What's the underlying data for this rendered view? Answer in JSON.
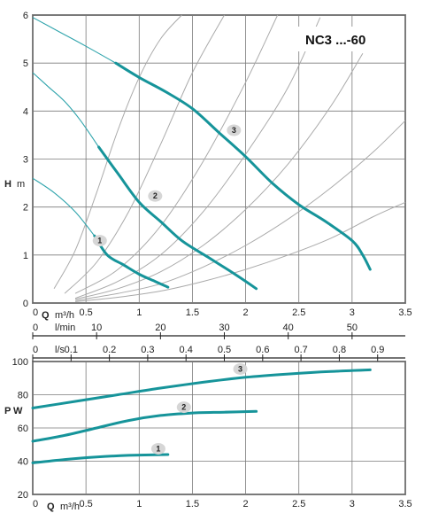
{
  "chart_data": [
    {
      "type": "line",
      "title": "NC3 ...-60",
      "ylabel": "H",
      "yunit": "m",
      "xlabel": "Q",
      "xunit": "m³/h",
      "xlim": [
        0,
        3.5
      ],
      "ylim": [
        0,
        6
      ],
      "x_ticks": [
        "0",
        "0.5",
        "1",
        "1.5",
        "2",
        "2.5",
        "3",
        "3.5"
      ],
      "y_ticks": [
        "0",
        "1",
        "2",
        "3",
        "4",
        "5",
        "6"
      ],
      "secondary_axes": [
        {
          "label": "l/min",
          "ticks": [
            "0",
            "10",
            "20",
            "30",
            "40",
            "50"
          ],
          "values": [
            0,
            10,
            20,
            30,
            40,
            50
          ],
          "per_m3h": 16.6667
        },
        {
          "label": "l/s",
          "ticks": [
            "0",
            "0.1",
            "0.2",
            "0.3",
            "0.4",
            "0.5",
            "0.6",
            "0.7",
            "0.8",
            "0.9"
          ],
          "values": [
            0,
            0.1,
            0.2,
            0.3,
            0.4,
            0.5,
            0.6,
            0.7,
            0.8,
            0.9
          ],
          "per_m3h": 0.27778
        }
      ],
      "grid": true,
      "series": [
        {
          "name": "1",
          "x": [
            0.58,
            0.7,
            0.85,
            1.0,
            1.15,
            1.27
          ],
          "y": [
            1.4,
            1.0,
            0.8,
            0.6,
            0.45,
            0.33
          ]
        },
        {
          "name": "2",
          "x": [
            0.62,
            0.8,
            1.0,
            1.2,
            1.4,
            1.65,
            1.9,
            2.1
          ],
          "y": [
            3.25,
            2.7,
            2.1,
            1.7,
            1.3,
            0.95,
            0.6,
            0.3
          ]
        },
        {
          "name": "3",
          "x": [
            0.78,
            1.0,
            1.25,
            1.5,
            1.75,
            2.0,
            2.25,
            2.5,
            2.75,
            3.0,
            3.1,
            3.17
          ],
          "y": [
            5.0,
            4.7,
            4.4,
            4.05,
            3.55,
            3.05,
            2.5,
            2.05,
            1.7,
            1.3,
            1.0,
            0.7
          ]
        }
      ],
      "curve_labels": [
        {
          "text": "1",
          "x": 0.63,
          "y": 1.3
        },
        {
          "text": "2",
          "x": 1.15,
          "y": 2.23
        },
        {
          "text": "3",
          "x": 1.89,
          "y": 3.6
        }
      ],
      "extension_lines": [
        {
          "x": [
            0.0,
            0.2,
            0.4,
            0.58
          ],
          "y": [
            2.6,
            2.3,
            1.9,
            1.4
          ]
        },
        {
          "x": [
            0.0,
            0.15,
            0.3,
            0.45,
            0.62
          ],
          "y": [
            4.8,
            4.5,
            4.2,
            3.8,
            3.25
          ]
        },
        {
          "x": [
            0.0,
            0.25,
            0.5,
            0.78
          ],
          "y": [
            5.95,
            5.65,
            5.35,
            5.0
          ]
        }
      ],
      "system_curves": [
        {
          "x": [
            0.2,
            0.4,
            0.6,
            0.8,
            1.0,
            1.2,
            1.4
          ],
          "y": [
            0.3,
            1.1,
            2.3,
            3.6,
            4.7,
            5.5,
            6.0
          ]
        },
        {
          "x": [
            0.3,
            0.6,
            0.9,
            1.2,
            1.5,
            1.8
          ],
          "y": [
            0.2,
            0.85,
            1.9,
            3.3,
            4.8,
            6.0
          ]
        },
        {
          "x": [
            0.4,
            0.8,
            1.2,
            1.6,
            2.0,
            2.3
          ],
          "y": [
            0.2,
            0.7,
            1.6,
            2.95,
            4.6,
            6.0
          ]
        },
        {
          "x": [
            0.4,
            0.8,
            1.2,
            1.6,
            2.0,
            2.4,
            2.7
          ],
          "y": [
            0.1,
            0.45,
            1.0,
            1.9,
            3.1,
            4.5,
            5.95
          ]
        },
        {
          "x": [
            0.4,
            0.8,
            1.2,
            1.6,
            2.0,
            2.4,
            2.8,
            3.1
          ],
          "y": [
            0.08,
            0.3,
            0.65,
            1.2,
            1.95,
            2.9,
            4.1,
            5.2
          ]
        },
        {
          "x": [
            0.4,
            0.8,
            1.2,
            1.6,
            2.0,
            2.4,
            2.8,
            3.2,
            3.5
          ],
          "y": [
            0.05,
            0.2,
            0.4,
            0.75,
            1.2,
            1.75,
            2.4,
            3.15,
            3.8
          ]
        },
        {
          "x": [
            0.4,
            0.8,
            1.2,
            1.6,
            2.0,
            2.4,
            2.8,
            3.2,
            3.5
          ],
          "y": [
            0.03,
            0.12,
            0.25,
            0.45,
            0.7,
            1.0,
            1.35,
            1.8,
            2.1
          ]
        }
      ],
      "colors": {
        "pump_curve": "#16949a",
        "extension": "#2fa4ac",
        "system_curve": "#aaaaaa",
        "grid": "#7a7a7a",
        "badge_fill": "#d6d6d6"
      }
    },
    {
      "type": "line",
      "ylabel": "P",
      "yunit": "W",
      "xlabel": "Q",
      "xunit": "m³/h",
      "xlim": [
        0,
        3.5
      ],
      "ylim": [
        20,
        100
      ],
      "x_ticks": [
        "0",
        "0.5",
        "1",
        "1.5",
        "2",
        "2.5",
        "3",
        "3.5"
      ],
      "y_ticks": [
        "20",
        "40",
        "60",
        "80",
        "100"
      ],
      "grid": true,
      "series": [
        {
          "name": "1",
          "x": [
            0.0,
            0.3,
            0.6,
            0.9,
            1.27
          ],
          "y": [
            39,
            41,
            42.5,
            43.5,
            44
          ]
        },
        {
          "name": "2",
          "x": [
            0.0,
            0.3,
            0.6,
            0.9,
            1.2,
            1.5,
            1.8,
            2.1
          ],
          "y": [
            52,
            55.5,
            60,
            64.5,
            67.5,
            69,
            69.5,
            70
          ]
        },
        {
          "name": "3",
          "x": [
            0.0,
            0.4,
            0.8,
            1.2,
            1.6,
            2.0,
            2.4,
            2.8,
            3.17
          ],
          "y": [
            72,
            76,
            80,
            84,
            87.5,
            90.5,
            92.5,
            94,
            95
          ]
        }
      ],
      "curve_labels": [
        {
          "text": "1",
          "x": 1.18,
          "y": 47.5
        },
        {
          "text": "2",
          "x": 1.42,
          "y": 72.5
        },
        {
          "text": "3",
          "x": 1.95,
          "y": 95.5
        }
      ]
    }
  ]
}
